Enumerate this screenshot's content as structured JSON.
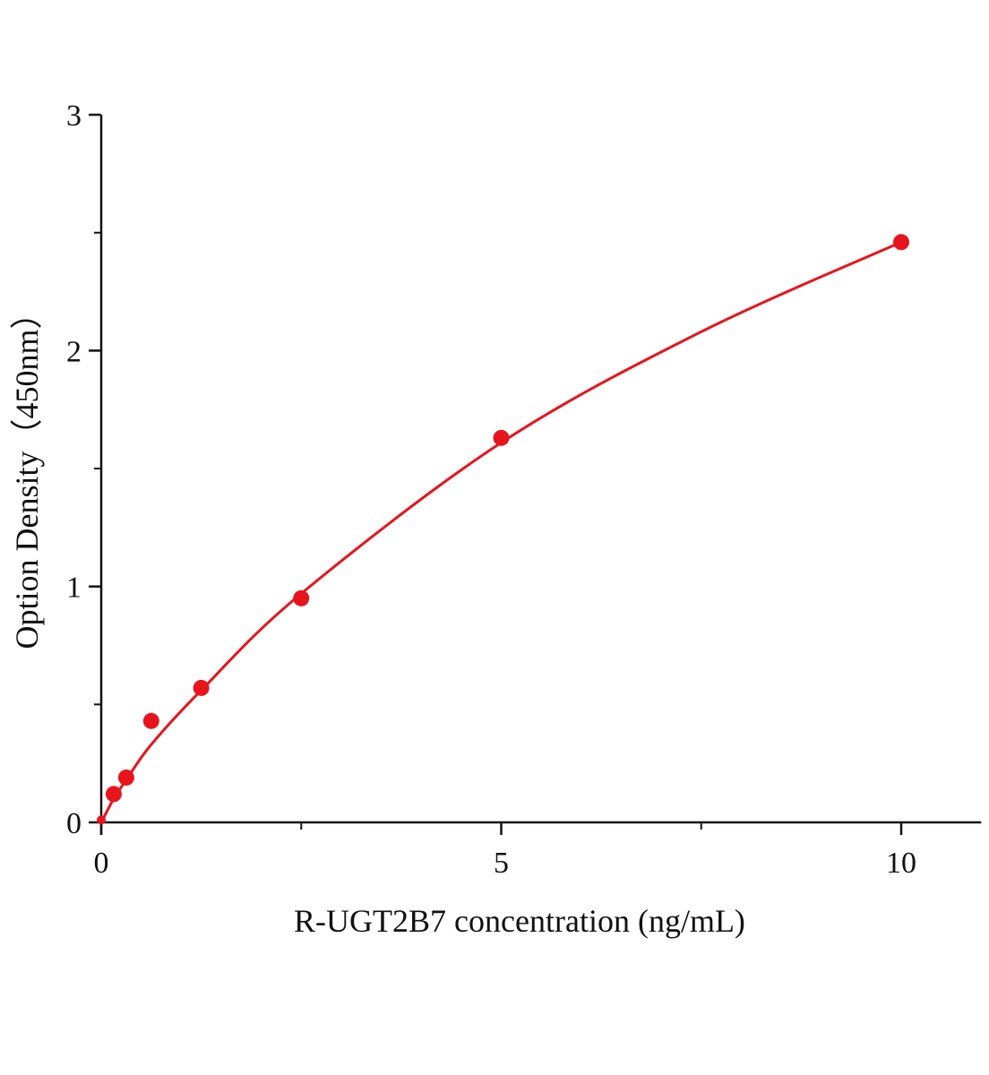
{
  "chart_data": {
    "type": "scatter",
    "title": "",
    "xlabel": "R-UGT2B7 concentration (ng/mL)",
    "ylabel": "Option Density（450nm）",
    "xlim": [
      0,
      11
    ],
    "ylim": [
      0,
      3
    ],
    "x_ticks": [
      "0",
      "5",
      "10"
    ],
    "y_ticks": [
      "0",
      "1",
      "2",
      "3"
    ],
    "grid": false,
    "legend": "none",
    "color": "#e8141c",
    "series": [
      {
        "points": [
          {
            "x": 0,
            "y": 0.01
          },
          {
            "x": 0.156,
            "y": 0.12
          },
          {
            "x": 0.3125,
            "y": 0.19
          },
          {
            "x": 0.625,
            "y": 0.43
          },
          {
            "x": 1.25,
            "y": 0.57
          },
          {
            "x": 2.5,
            "y": 0.95
          },
          {
            "x": 5,
            "y": 1.63
          },
          {
            "x": 10,
            "y": 2.46
          }
        ],
        "fit_curve": [
          {
            "x": 0,
            "y": 0
          },
          {
            "x": 0.156,
            "y": 0.1
          },
          {
            "x": 0.3125,
            "y": 0.18
          },
          {
            "x": 0.625,
            "y": 0.33
          },
          {
            "x": 1.25,
            "y": 0.56
          },
          {
            "x": 2.5,
            "y": 0.97
          },
          {
            "x": 5,
            "y": 1.61
          },
          {
            "x": 7.5,
            "y": 2.08
          },
          {
            "x": 10,
            "y": 2.46
          }
        ]
      }
    ]
  }
}
